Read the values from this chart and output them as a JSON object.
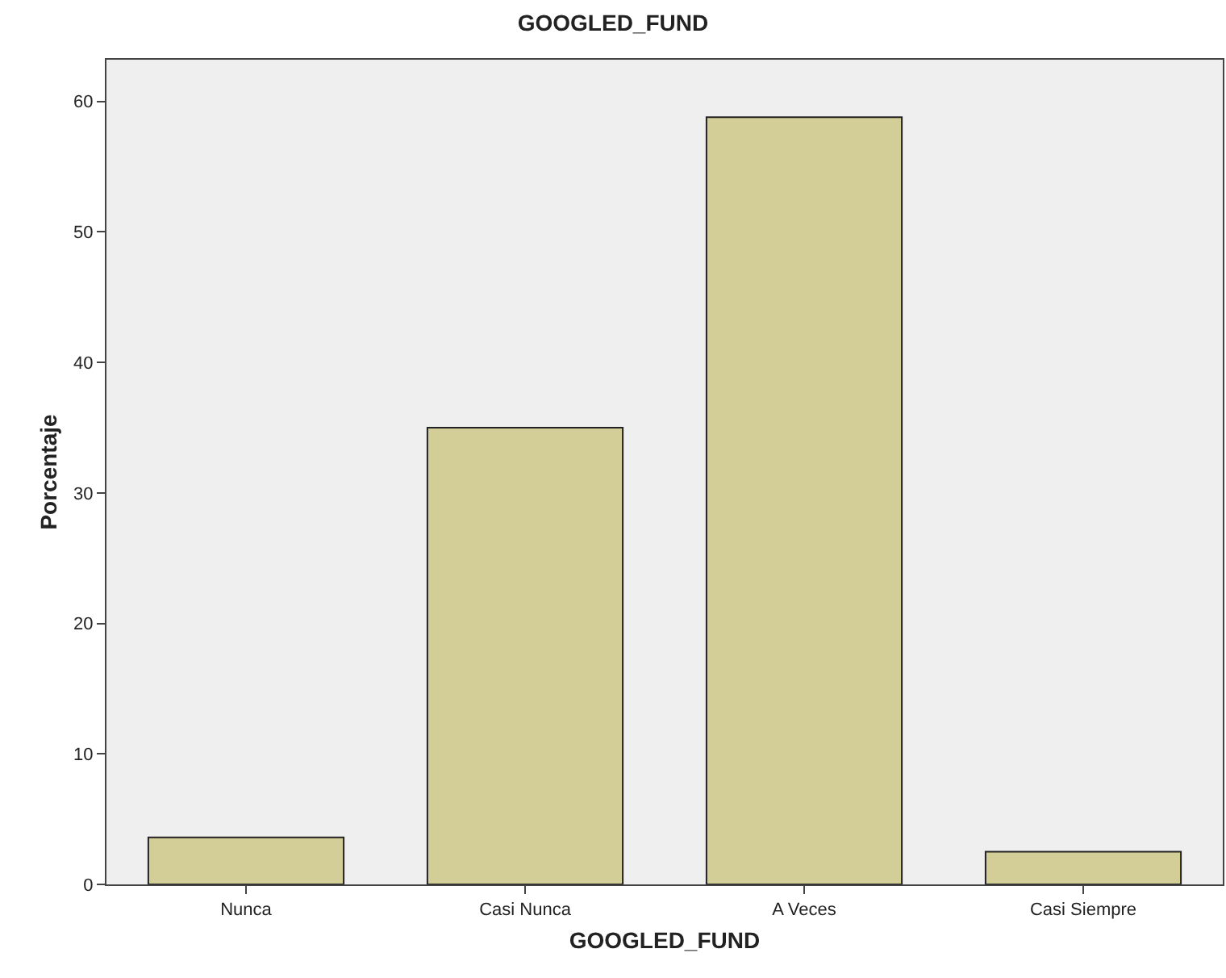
{
  "chart_data": {
    "type": "bar",
    "title": "GOOGLED_FUND",
    "xlabel": "GOOGLED_FUND",
    "ylabel": "Porcentaje",
    "categories": [
      "Nunca",
      "Casi Nunca",
      "A Veces",
      "Casi Siempre"
    ],
    "values": [
      3.6,
      35.0,
      58.8,
      2.5
    ],
    "color": "#d3cd98",
    "ylim": [
      0,
      63.2
    ],
    "yticks": [
      0,
      10,
      20,
      30,
      40,
      50,
      60
    ],
    "grid": false
  }
}
